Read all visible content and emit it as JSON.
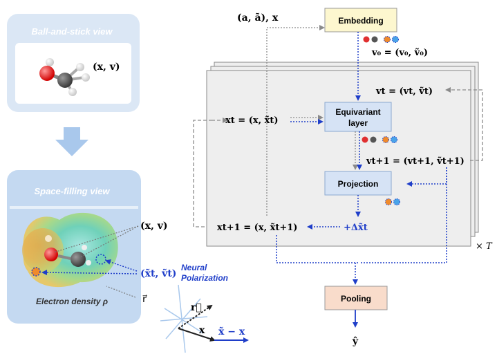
{
  "left_panel": {
    "ball_stick_title": "Ball-and-stick view",
    "ball_stick_label": "(x, v)",
    "space_filling_title": "Space-filling view",
    "space_filling_label": "(x, v)",
    "polar_label": "(x̃t, ṽt)",
    "neural_polarization": [
      "Neural",
      "Polarization"
    ],
    "electron_density": "Electron density ρ",
    "r_vec": "r⃗"
  },
  "vector_diagram": {
    "r_label": "r⃗",
    "x_label": "x",
    "diff_label": "x̃ − x"
  },
  "flow": {
    "input_label": "(a, ã), x",
    "embedding": "Embedding",
    "v0_eq": "v₀ = (v₀, ṽ₀)",
    "vt_eq": "vt = (vt, ṽt)",
    "xt_eq": "xt = (x, x̃t)",
    "equivariant": [
      "Equivariant",
      "layer"
    ],
    "vt1_eq": "vt+1 = (vt+1, ṽt+1)",
    "projection": "Projection",
    "xt1_eq": "xt+1 = (x, x̃t+1)",
    "delta": "+Δx̃t",
    "times_T": "× T",
    "pooling": "Pooling",
    "output": "ŷ"
  },
  "colors": {
    "panel_blue": "#c9dcf2",
    "panel_blue_dark": "#a9c8ec",
    "embedding_fill": "#fdf7cf",
    "pooling_fill": "#f9dccb",
    "layer_fill": "#d6e3f5",
    "accent_blue": "#1f3ec9",
    "gray_line": "#8a8a8a"
  }
}
